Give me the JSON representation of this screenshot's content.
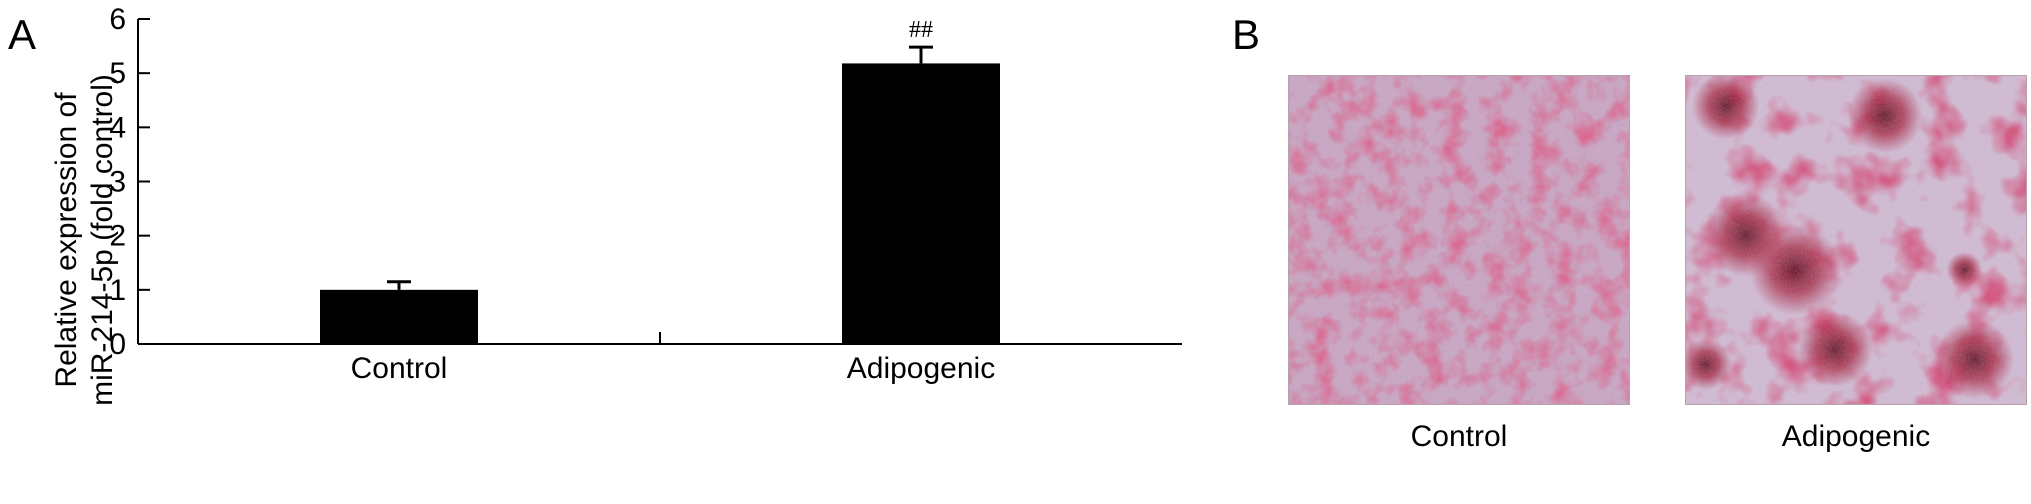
{
  "panels": {
    "a_label": "A",
    "b_label": "B"
  },
  "chart_data": {
    "type": "bar",
    "categories": [
      "Control",
      "Adipogenic"
    ],
    "values": [
      1.0,
      5.18
    ],
    "error_bars": [
      0.15,
      0.3
    ],
    "annotations": [
      "",
      "##"
    ],
    "ylabel": "Relative expression of\nmiR-214-5p (fold control)",
    "xlabel": "",
    "ylim": [
      0,
      6
    ],
    "yticks": [
      0,
      1,
      2,
      3,
      4,
      5,
      6
    ],
    "bar_color": "#000000",
    "grid": false,
    "legend": "none"
  },
  "images": [
    {
      "caption": "Control",
      "stain_color": "#c0304e",
      "background_color": "#c9a9c4"
    },
    {
      "caption": "Adipogenic",
      "stain_color": "#b0203f",
      "background_color": "#d1bdd3"
    }
  ]
}
